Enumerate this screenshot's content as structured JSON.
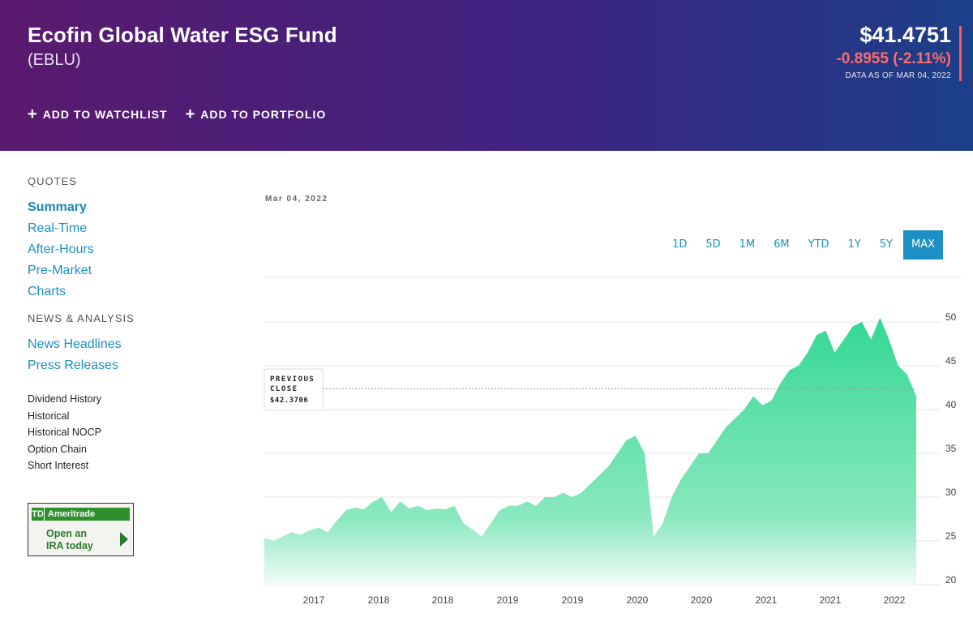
{
  "header": {
    "title": "Ecofin Global Water ESG Fund",
    "symbol": "(EBLU)",
    "actions": [
      {
        "label": "ADD TO WATCHLIST",
        "icon": "plus-icon"
      },
      {
        "label": "ADD TO PORTFOLIO",
        "icon": "plus-icon"
      }
    ],
    "price": "$41.4751",
    "change": "-0.8955 (-2.11%)",
    "as_of": "DATA AS OF MAR 04, 2022",
    "colors": {
      "gradient_start": "#5a1a6e",
      "gradient_end": "#1c3f88",
      "negative": "#ff6b6b"
    }
  },
  "sidebar": {
    "quotes_title": "QUOTES",
    "quotes_links": [
      "Summary",
      "Real-Time",
      "After-Hours",
      "Pre-Market",
      "Charts"
    ],
    "active_link": "Summary",
    "news_title": "NEWS & ANALYSIS",
    "news_links": [
      "News Headlines",
      "Press Releases"
    ],
    "other_links": [
      "Dividend History",
      "Historical",
      "Historical NOCP",
      "Option Chain",
      "Short Interest"
    ]
  },
  "ad": {
    "logo": "TD",
    "brand": "Ameritrade",
    "line1": "Open an",
    "line2": "IRA today"
  },
  "chart": {
    "date_label": "Mar 04, 2022",
    "ranges": [
      "1D",
      "5D",
      "1M",
      "6M",
      "YTD",
      "1Y",
      "5Y",
      "MAX"
    ],
    "active_range": "MAX",
    "tooltip": {
      "line1": "PREVIOUS",
      "line2": "CLOSE",
      "value": "$42.3706"
    },
    "accent_color": "#1c8fc4",
    "fill_color": "#3ddc97"
  },
  "chart_data": {
    "type": "area",
    "title": "",
    "xlabel": "",
    "ylabel": "",
    "x_tick_labels": [
      "2017",
      "2018",
      "2018",
      "2019",
      "2019",
      "2020",
      "2020",
      "2021",
      "2021",
      "2022"
    ],
    "y_ticks": [
      50,
      45,
      40,
      35,
      30,
      25,
      20
    ],
    "ylim": [
      20,
      52
    ],
    "grid": true,
    "previous_close": 42.3706,
    "series": [
      {
        "values": [
          25.3,
          25.0,
          25.5,
          26.0,
          25.7,
          26.2,
          26.5,
          26.0,
          27.3,
          28.5,
          28.8,
          28.6,
          29.5,
          30.0,
          28.3,
          29.5,
          28.7,
          29.0,
          28.5,
          28.7,
          28.6,
          29.0,
          27.0,
          26.3,
          25.5,
          27.0,
          28.5,
          29.0,
          29.0,
          29.5,
          29.0,
          30.0,
          30.0,
          30.5,
          30.0,
          30.5,
          31.5,
          32.5,
          33.5,
          35.0,
          36.5,
          37.0,
          35.0,
          25.5,
          27.0,
          30.0,
          32.0,
          33.5,
          35.0,
          35.0,
          36.5,
          38.0,
          39.0,
          40.0,
          41.5,
          40.5,
          41.0,
          43.0,
          44.5,
          45.0,
          46.5,
          48.5,
          49.0,
          46.5,
          48.0,
          49.5,
          50.0,
          48.0,
          50.5,
          48.0,
          45.0,
          44.0,
          41.5
        ]
      }
    ]
  }
}
